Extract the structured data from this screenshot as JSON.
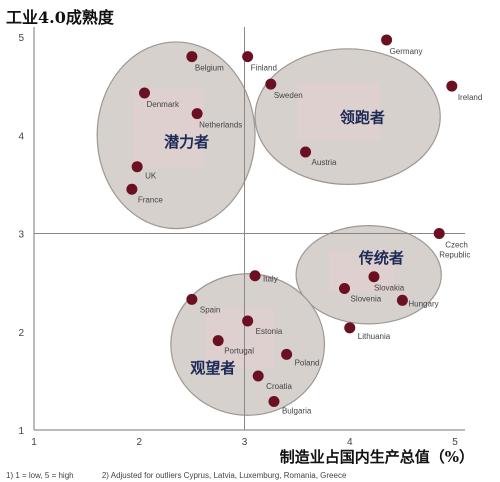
{
  "chart_data": {
    "type": "scatter",
    "ylabel": "工业4.0成熟度",
    "xlabel": "制造业占国内生产总值（%）",
    "xlim": [
      1,
      5
    ],
    "ylim": [
      1,
      5
    ],
    "x_ticks": [
      "1",
      "2",
      "3",
      "4",
      "5"
    ],
    "y_ticks": [
      "1",
      "2",
      "3",
      "4",
      "5"
    ],
    "x_divider": 3,
    "y_divider": 3,
    "groups": [
      {
        "label": "潜力者",
        "cx": 2.35,
        "cy": 4.0,
        "rx": 0.75,
        "ry": 0.95
      },
      {
        "label": "领跑者",
        "cx": 3.98,
        "cy": 4.19,
        "rx": 0.88,
        "ry": 0.69
      },
      {
        "label": "传统者",
        "cx": 4.18,
        "cy": 2.58,
        "rx": 0.69,
        "ry": 0.5
      },
      {
        "label": "观望者",
        "cx": 3.03,
        "cy": 1.87,
        "rx": 0.73,
        "ry": 0.72
      }
    ],
    "points": [
      {
        "name": "Belgium",
        "x": 2.5,
        "y": 4.8
      },
      {
        "name": "Finland",
        "x": 3.03,
        "y": 4.8
      },
      {
        "name": "Germany",
        "x": 4.35,
        "y": 4.97
      },
      {
        "name": "Denmark",
        "x": 2.05,
        "y": 4.43
      },
      {
        "name": "Sweden",
        "x": 3.25,
        "y": 4.52
      },
      {
        "name": "Ireland",
        "x": 4.97,
        "y": 4.5
      },
      {
        "name": "Netherlands",
        "x": 2.55,
        "y": 4.22
      },
      {
        "name": "Austria",
        "x": 3.58,
        "y": 3.83
      },
      {
        "name": "UK",
        "x": 1.98,
        "y": 3.68
      },
      {
        "name": "France",
        "x": 1.93,
        "y": 3.45
      },
      {
        "name": "Czech Republic",
        "x": 4.85,
        "y": 3.0
      },
      {
        "name": "Italy",
        "x": 3.1,
        "y": 2.57
      },
      {
        "name": "Slovakia",
        "x": 4.23,
        "y": 2.56
      },
      {
        "name": "Spain",
        "x": 2.5,
        "y": 2.33
      },
      {
        "name": "Slovenia",
        "x": 3.95,
        "y": 2.44
      },
      {
        "name": "Hungary",
        "x": 4.5,
        "y": 2.32
      },
      {
        "name": "Estonia",
        "x": 3.03,
        "y": 2.11
      },
      {
        "name": "Lithuania",
        "x": 4.0,
        "y": 2.04
      },
      {
        "name": "Portugal",
        "x": 2.75,
        "y": 1.91
      },
      {
        "name": "Poland",
        "x": 3.4,
        "y": 1.77
      },
      {
        "name": "Croatia",
        "x": 3.13,
        "y": 1.55
      },
      {
        "name": "Bulgaria",
        "x": 3.28,
        "y": 1.29
      }
    ]
  },
  "footnotes": [
    "1) 1 = low,  5 = high",
    "2) Adjusted for outliers Cyprus, Latvia, Luxemburg, Romania, Greece"
  ],
  "colors": {
    "ellipse_fill": "#d6d1cd",
    "ellipse_stroke": "#9c9894",
    "marker": "#6b0f22",
    "map_tint": "#e8cfd2"
  }
}
